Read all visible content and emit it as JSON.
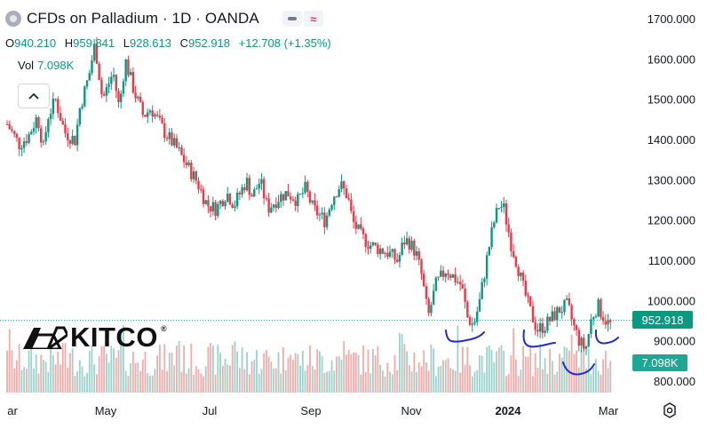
{
  "header": {
    "title": "CFDs on Palladium · 1D · OANDA",
    "badge_grey_icon": "minus-icon",
    "badge_pink_label": "≈",
    "ohlc": {
      "o_label": "O",
      "o_value": "940.210",
      "h_label": "H",
      "h_value": "959.841",
      "l_label": "L",
      "l_value": "928.613",
      "c_label": "C",
      "c_value": "952.918",
      "change": "+12.708 (+1.35%)"
    },
    "vol_label": "Vol",
    "vol_value": "7.098K"
  },
  "logo": {
    "text": "KITCO",
    "reg": "®"
  },
  "colors": {
    "up": "#089981",
    "down": "#f23645",
    "vol_up": "#9ad3cb",
    "vol_down": "#f7a9a7",
    "drawing": "#1f2bd6",
    "axis_text": "#131722"
  },
  "chart_data": {
    "type": "candlestick",
    "symbol": "CFDs on Palladium",
    "interval": "1D",
    "source": "OANDA",
    "y_axis": {
      "ticks": [
        800,
        900,
        1000,
        1100,
        1200,
        1300,
        1400,
        1500,
        1600,
        1700
      ],
      "tick_labels": [
        "800.000",
        "900.000",
        "1000.000",
        "1100.000",
        "1200.000",
        "1300.000",
        "1400.000",
        "1500.000",
        "1600.000",
        "1700.000"
      ],
      "ylim": [
        762,
        1722
      ]
    },
    "x_axis": {
      "labels": [
        "ar",
        "May",
        "Jul",
        "Sep",
        "Nov",
        "2024",
        "Mar"
      ],
      "bold": [
        false,
        false,
        false,
        false,
        false,
        true,
        false
      ]
    },
    "last_price": 952.918,
    "last_price_label": "952.918",
    "volume_label": "7.098K",
    "price_path": [
      [
        0,
        1440
      ],
      [
        8,
        1390
      ],
      [
        14,
        1410
      ],
      [
        20,
        1460
      ],
      [
        24,
        1380
      ],
      [
        27,
        1460
      ],
      [
        32,
        1500
      ],
      [
        38,
        1420
      ],
      [
        45,
        1400
      ],
      [
        48,
        1480
      ],
      [
        54,
        1560
      ],
      [
        58,
        1640
      ],
      [
        63,
        1500
      ],
      [
        70,
        1570
      ],
      [
        74,
        1480
      ],
      [
        78,
        1600
      ],
      [
        84,
        1520
      ],
      [
        90,
        1460
      ],
      [
        95,
        1480
      ],
      [
        104,
        1420
      ],
      [
        112,
        1380
      ],
      [
        120,
        1330
      ],
      [
        125,
        1300
      ],
      [
        132,
        1240
      ],
      [
        138,
        1230
      ],
      [
        145,
        1270
      ],
      [
        150,
        1240
      ],
      [
        158,
        1300
      ],
      [
        162,
        1260
      ],
      [
        167,
        1300
      ],
      [
        172,
        1230
      ],
      [
        180,
        1260
      ],
      [
        185,
        1270
      ],
      [
        192,
        1250
      ],
      [
        197,
        1280
      ],
      [
        202,
        1230
      ],
      [
        210,
        1200
      ],
      [
        215,
        1260
      ],
      [
        220,
        1290
      ],
      [
        225,
        1260
      ],
      [
        228,
        1200
      ],
      [
        234,
        1160
      ],
      [
        240,
        1140
      ],
      [
        246,
        1130
      ],
      [
        252,
        1120
      ],
      [
        258,
        1100
      ],
      [
        262,
        1150
      ],
      [
        265,
        1150
      ],
      [
        270,
        1120
      ],
      [
        274,
        1060
      ],
      [
        278,
        960
      ],
      [
        283,
        1040
      ],
      [
        290,
        1080
      ],
      [
        295,
        1060
      ],
      [
        300,
        1040
      ],
      [
        304,
        960
      ],
      [
        308,
        940
      ],
      [
        312,
        1000
      ],
      [
        317,
        1110
      ],
      [
        321,
        1190
      ],
      [
        325,
        1240
      ],
      [
        328,
        1230
      ],
      [
        333,
        1140
      ],
      [
        337,
        1090
      ],
      [
        341,
        1030
      ],
      [
        346,
        970
      ],
      [
        350,
        930
      ],
      [
        355,
        940
      ],
      [
        360,
        960
      ],
      [
        365,
        980
      ],
      [
        370,
        990
      ],
      [
        374,
        940
      ],
      [
        378,
        900
      ],
      [
        382,
        880
      ],
      [
        386,
        960
      ],
      [
        390,
        990
      ],
      [
        394,
        960
      ],
      [
        398,
        940
      ],
      [
        400,
        953
      ]
    ],
    "trend_lines_hand_drawn": 4
  }
}
